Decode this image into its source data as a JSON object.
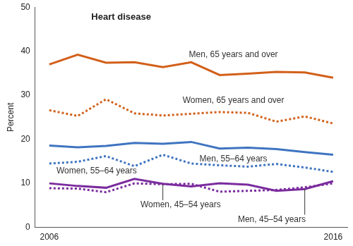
{
  "chart_data": {
    "type": "line",
    "title": "Heart disease",
    "y_label": "Percent",
    "categories": [
      "2006",
      null,
      null,
      null,
      null,
      null,
      null,
      null,
      null,
      null,
      "2016"
    ],
    "ylim": [
      0,
      50
    ],
    "yticks": [
      0,
      10,
      20,
      30,
      40,
      50
    ],
    "grid": false,
    "series": [
      {
        "name": "Men, 65 years and over",
        "color": "#d2601a",
        "line_style": "solid",
        "values": [
          37.0,
          39.2,
          37.4,
          37.5,
          36.4,
          37.5,
          34.6,
          34.9,
          35.3,
          35.2,
          34.0
        ]
      },
      {
        "name": "Women, 65 years and over",
        "color": "#d2601a",
        "line_style": "dotted",
        "values": [
          26.6,
          25.3,
          29.1,
          25.9,
          25.4,
          25.8,
          26.2,
          26.0,
          24.0,
          25.2,
          23.6
        ]
      },
      {
        "name": "Men, 55–64 years",
        "color": "#3f74c0",
        "line_style": "solid",
        "values": [
          18.6,
          18.2,
          18.5,
          19.2,
          19.0,
          19.4,
          17.9,
          18.1,
          17.8,
          17.1,
          16.5
        ]
      },
      {
        "name": "Women, 55–64 years",
        "color": "#3f74c0",
        "line_style": "dotted",
        "values": [
          14.5,
          14.9,
          16.2,
          13.9,
          16.5,
          14.5,
          14.1,
          13.8,
          14.4,
          13.6,
          12.6
        ]
      },
      {
        "name": "Men, 45–54 years",
        "color": "#7b2c9e",
        "line_style": "solid",
        "values": [
          10.0,
          9.4,
          9.0,
          11.0,
          9.9,
          9.3,
          10.0,
          9.7,
          8.3,
          8.7,
          10.5
        ]
      },
      {
        "name": "Women, 45–54 years",
        "color": "#7b2c9e",
        "line_style": "dotted",
        "values": [
          8.9,
          8.8,
          8.0,
          10.0,
          9.8,
          9.9,
          8.1,
          8.3,
          8.5,
          9.1,
          10.0
        ]
      }
    ]
  }
}
